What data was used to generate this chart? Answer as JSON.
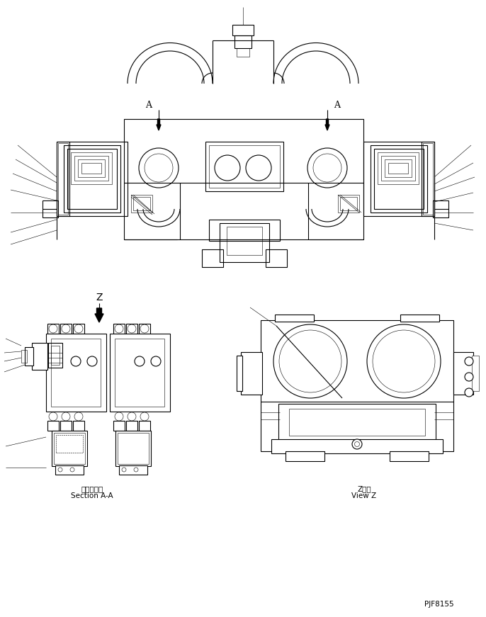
{
  "bg_color": "#ffffff",
  "line_color": "#000000",
  "lw": 0.8,
  "tlw": 0.4,
  "fig_width": 6.86,
  "fig_height": 8.71,
  "dpi": 100,
  "label_section_aa_jp": "断面Ａ－Ａ",
  "label_section_aa_en": "Section A-A",
  "label_view_z_jp": "Z　視",
  "label_view_z_en": "View Z",
  "part_number": "PJF8155"
}
